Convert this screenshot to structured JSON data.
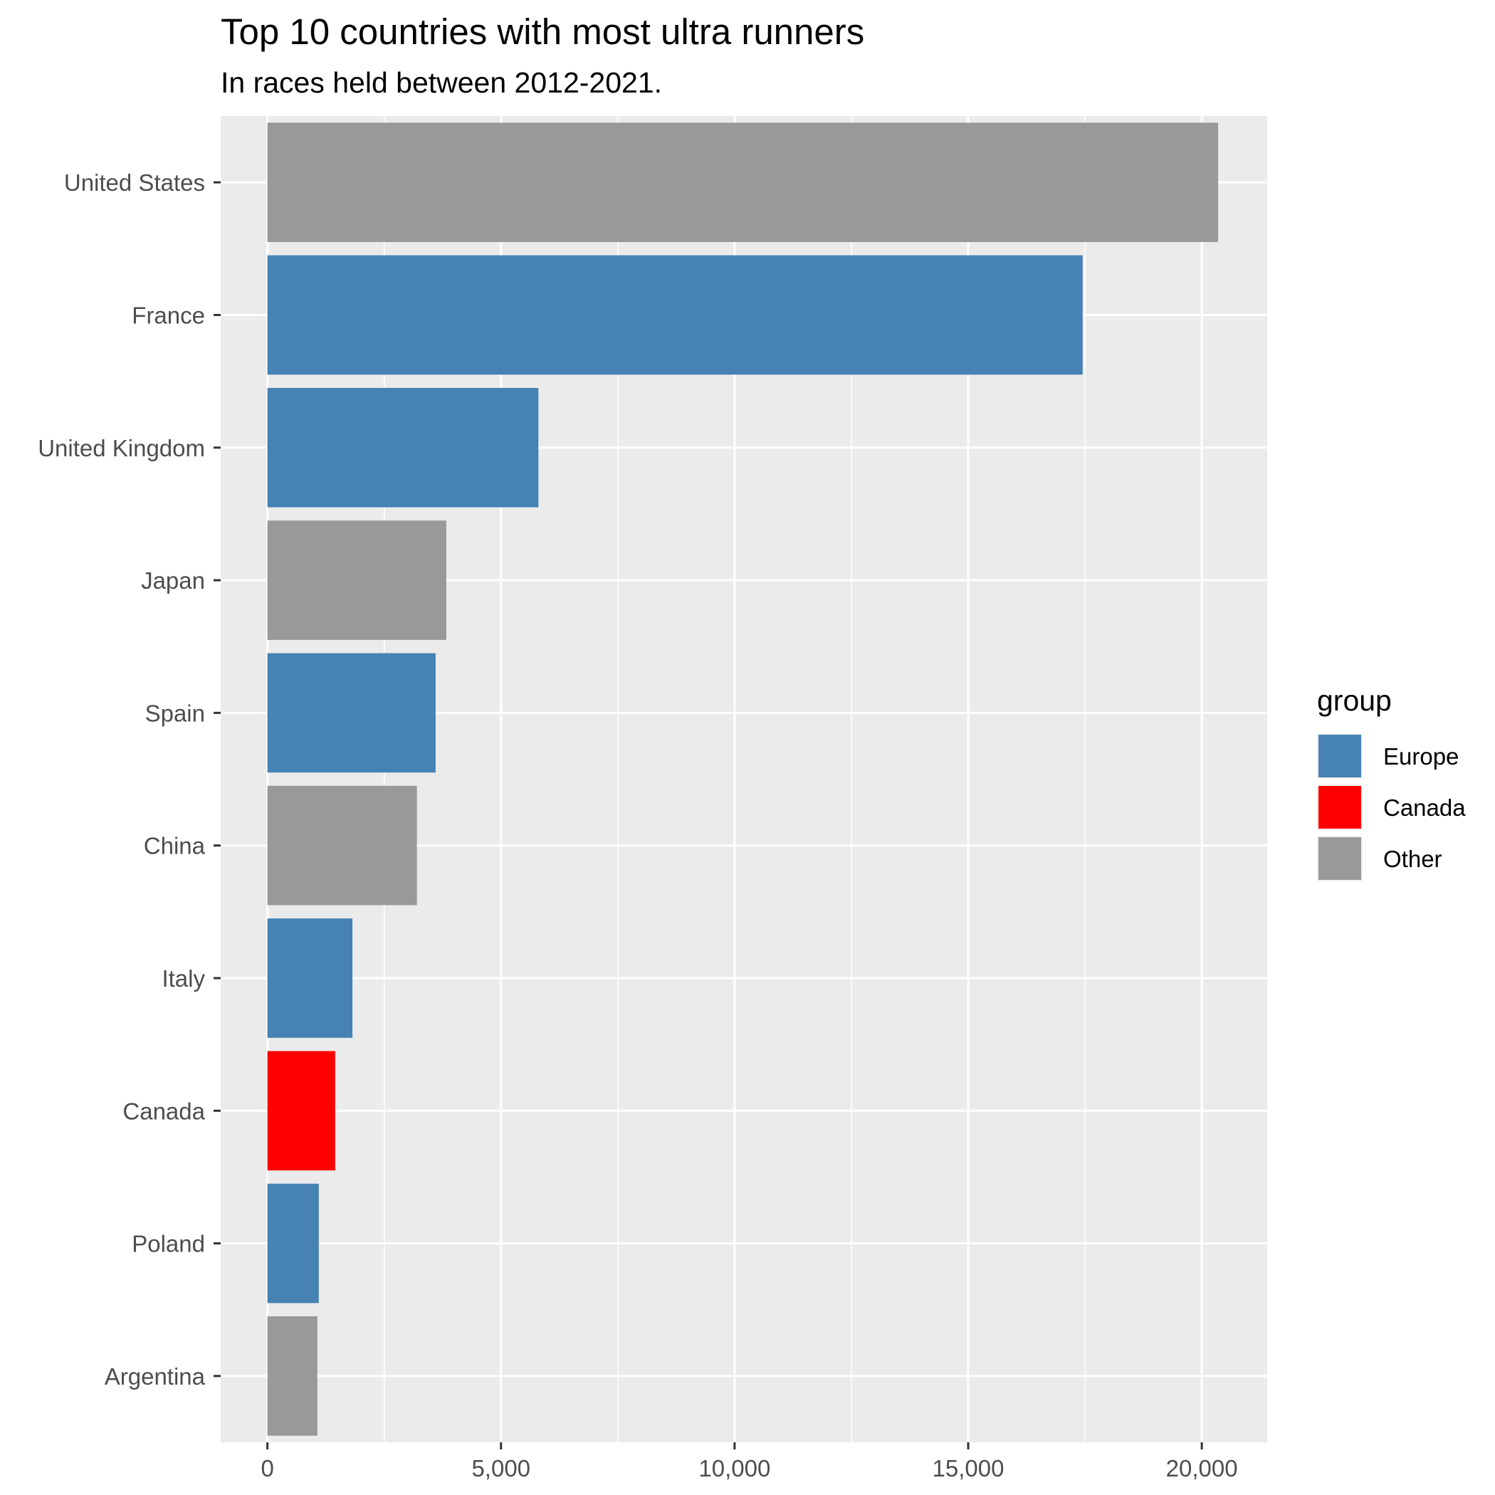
{
  "chart_data": {
    "type": "bar",
    "orientation": "horizontal",
    "title": "Top 10 countries with most ultra runners",
    "subtitle": "In races held between 2012-2021.",
    "xlabel": "",
    "ylabel": "",
    "categories": [
      "United States",
      "France",
      "United Kingdom",
      "Japan",
      "Spain",
      "China",
      "Italy",
      "Canada",
      "Poland",
      "Argentina"
    ],
    "values": [
      20350,
      17450,
      5800,
      3830,
      3600,
      3200,
      1820,
      1450,
      1100,
      1070
    ],
    "groups": [
      "Other",
      "Europe",
      "Europe",
      "Other",
      "Europe",
      "Other",
      "Europe",
      "Canada",
      "Europe",
      "Other"
    ],
    "xlim": [
      -1000,
      21400
    ],
    "xticks": [
      0,
      5000,
      10000,
      15000,
      20000
    ],
    "xtick_labels": [
      "0",
      "5,000",
      "10,000",
      "15,000",
      "20,000"
    ],
    "grid": true,
    "legend": {
      "title": "group",
      "position": "right",
      "items": [
        {
          "label": "Europe",
          "color": "#4682B4"
        },
        {
          "label": "Canada",
          "color": "#FF0000"
        },
        {
          "label": "Other",
          "color": "#999999"
        }
      ]
    },
    "panel_background": "#EBEBEB"
  }
}
